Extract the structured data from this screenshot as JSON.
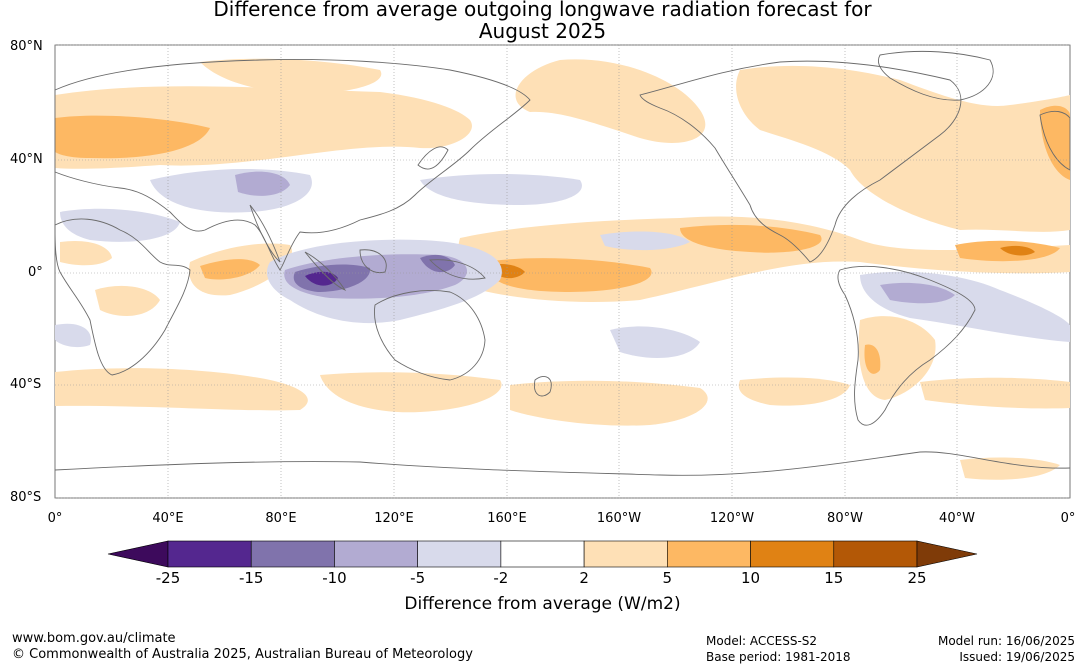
{
  "title": {
    "line1": "Difference from average outgoing longwave radiation forecast for",
    "line2": "August 2025"
  },
  "map": {
    "lat_labels": [
      "80°N",
      "40°N",
      "0°",
      "40°S",
      "80°S"
    ],
    "lon_labels": [
      "0°",
      "40°E",
      "80°E",
      "120°E",
      "160°E",
      "160°W",
      "120°W",
      "80°W",
      "40°W",
      "0°"
    ],
    "coastline_color": "#6b6b6b",
    "grid_color": "#999999"
  },
  "colorbar": {
    "ticks": [
      "-25",
      "-15",
      "-10",
      "-5",
      "-2",
      "2",
      "5",
      "10",
      "15",
      "25"
    ],
    "colors": [
      "#3d0a5c",
      "#54278f",
      "#8073ac",
      "#b2abd2",
      "#d8daeb",
      "#ffffff",
      "#fee0b6",
      "#fdb863",
      "#e08214",
      "#b35806",
      "#7f3b08"
    ],
    "label": "Difference from average (W/m2)"
  },
  "footer": {
    "url": "www.bom.gov.au/climate",
    "copyright": "© Commonwealth of Australia 2025, Australian Bureau of Meteorology",
    "model": "Model: ACCESS-S2",
    "base_period": "Base period: 1981-2018",
    "model_run": "Model run: 16/06/2025",
    "issued": "Issued: 19/06/2025"
  }
}
